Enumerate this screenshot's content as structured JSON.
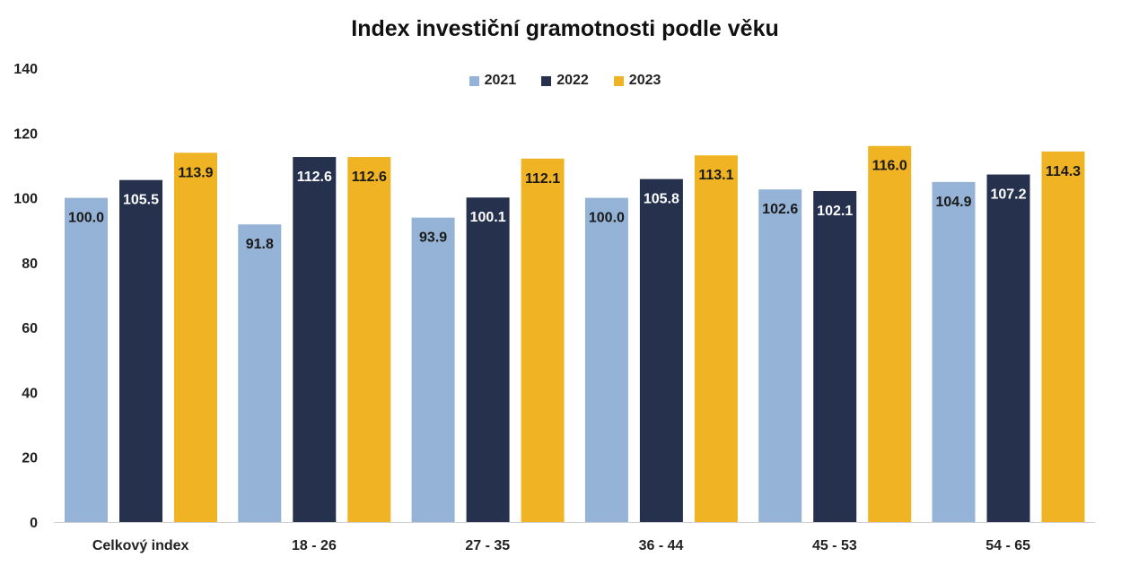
{
  "chart_data": {
    "type": "bar",
    "title": "Index investiční gramotnosti podle věku",
    "xlabel": "",
    "ylabel": "",
    "categories": [
      "Celkový index",
      "18 - 26",
      "27 - 35",
      "36 - 44",
      "45 - 53",
      "54 - 65"
    ],
    "series": [
      {
        "name": "2021",
        "color": "#95B3D7",
        "label_color": "#1a1a1a",
        "values": [
          100.0,
          91.8,
          93.9,
          100.0,
          102.6,
          104.9
        ]
      },
      {
        "name": "2022",
        "color": "#26314E",
        "label_color": "#ffffff",
        "values": [
          105.5,
          112.6,
          100.1,
          105.8,
          102.1,
          107.2
        ]
      },
      {
        "name": "2023",
        "color": "#F0B323",
        "label_color": "#1a1a1a",
        "values": [
          113.9,
          112.6,
          112.1,
          113.1,
          116.0,
          114.3
        ]
      }
    ],
    "value_labels": [
      [
        "100.0",
        "91.8",
        "93.9",
        "100.0",
        "102.6",
        "104.9"
      ],
      [
        "105.5",
        "112.6",
        "100.1",
        "105.8",
        "102.1",
        "107.2"
      ],
      [
        "113.9",
        "112.6",
        "112.1",
        "113.1",
        "116.0",
        "114.3"
      ]
    ],
    "ylim": [
      0,
      140
    ],
    "yticks": [
      0,
      20,
      40,
      60,
      80,
      100,
      120,
      140
    ],
    "ytick_labels": [
      "0",
      "20",
      "40",
      "60",
      "80",
      "100",
      "120",
      "140"
    ],
    "grid": false,
    "legend_position": "top-center"
  }
}
